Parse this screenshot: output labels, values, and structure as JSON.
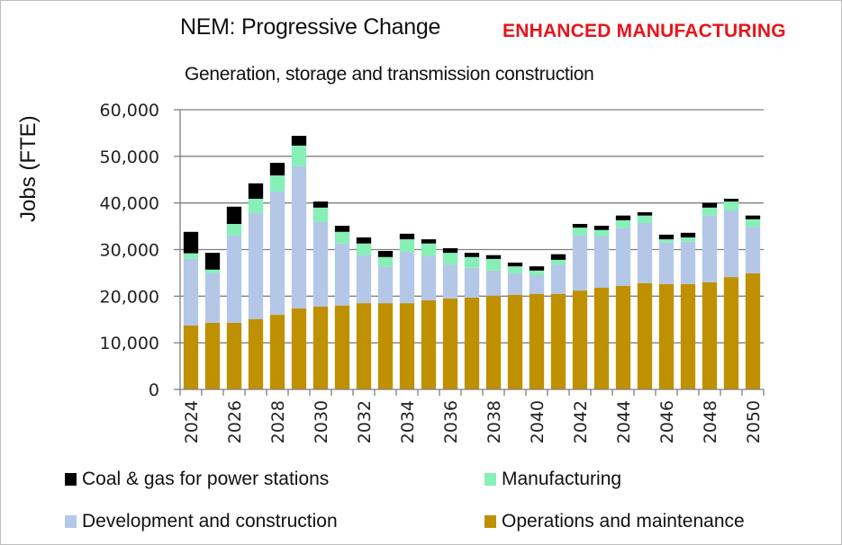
{
  "header": {
    "title": "NEM: Progressive Change",
    "badge": "ENHANCED MANUFACTURING",
    "subtitle": "Generation, storage and transmission construction"
  },
  "colors": {
    "badge": "#e8141b",
    "coal_gas": "#000000",
    "manufacturing": "#86f0b6",
    "development": "#b4c7e7",
    "operations": "#bf9000",
    "grid": "#808080"
  },
  "chart_data": {
    "type": "bar",
    "stacked": true,
    "title": "NEM: Progressive Change",
    "subtitle": "Generation, storage and transmission construction",
    "xlabel": "",
    "ylabel": "Jobs (FTE)",
    "ylim": [
      0,
      60000
    ],
    "yticks": [
      0,
      10000,
      20000,
      30000,
      40000,
      50000,
      60000
    ],
    "ytick_labels": [
      "0",
      "10,000",
      "20,000",
      "30,000",
      "40,000",
      "50,000",
      "60,000"
    ],
    "grid": true,
    "legend_position": "bottom",
    "categories": [
      "2024",
      "2025",
      "2026",
      "2027",
      "2028",
      "2029",
      "2030",
      "2031",
      "2032",
      "2033",
      "2034",
      "2035",
      "2036",
      "2037",
      "2038",
      "2039",
      "2040",
      "2041",
      "2042",
      "2043",
      "2044",
      "2045",
      "2046",
      "2047",
      "2048",
      "2049",
      "2050"
    ],
    "xtick_labels": [
      "2024",
      "2026",
      "2028",
      "2030",
      "2032",
      "2034",
      "2036",
      "2038",
      "2040",
      "2042",
      "2044",
      "2046",
      "2048",
      "2050"
    ],
    "series": [
      {
        "name": "Operations and maintenance",
        "color_key": "operations",
        "values": [
          13700,
          14300,
          14300,
          15100,
          16000,
          17400,
          17800,
          18000,
          18500,
          18500,
          18500,
          19100,
          19500,
          19700,
          20100,
          20300,
          20500,
          20500,
          21200,
          21800,
          22200,
          22800,
          22600,
          22600,
          23000,
          24100,
          24900
        ]
      },
      {
        "name": "Development and construction",
        "color_key": "development",
        "values": [
          14300,
          10600,
          18700,
          22700,
          26500,
          30500,
          18100,
          13300,
          10300,
          7900,
          11000,
          9500,
          7300,
          6400,
          5400,
          4600,
          4000,
          6300,
          11800,
          11000,
          12500,
          12900,
          8900,
          9100,
          14300,
          14300,
          10000
        ]
      },
      {
        "name": "Manufacturing",
        "color_key": "manufacturing",
        "values": [
          1200,
          800,
          2500,
          3100,
          3400,
          4400,
          3100,
          2500,
          2500,
          2000,
          2700,
          2700,
          2500,
          2300,
          2500,
          1500,
          1000,
          1000,
          1700,
          1400,
          1600,
          1600,
          700,
          900,
          1700,
          1900,
          1600
        ]
      },
      {
        "name": "Coal & gas for power stations",
        "color_key": "coal_gas",
        "values": [
          4600,
          3600,
          3700,
          3300,
          2700,
          2100,
          1300,
          1300,
          1300,
          1300,
          1200,
          900,
          1000,
          900,
          800,
          800,
          900,
          1200,
          800,
          900,
          1000,
          700,
          1000,
          1000,
          1000,
          600,
          800
        ]
      }
    ]
  },
  "legend": [
    {
      "label": "Coal & gas for power stations",
      "color_key": "coal_gas"
    },
    {
      "label": "Manufacturing",
      "color_key": "manufacturing"
    },
    {
      "label": "Development and construction",
      "color_key": "development"
    },
    {
      "label": "Operations and maintenance",
      "color_key": "operations"
    }
  ]
}
